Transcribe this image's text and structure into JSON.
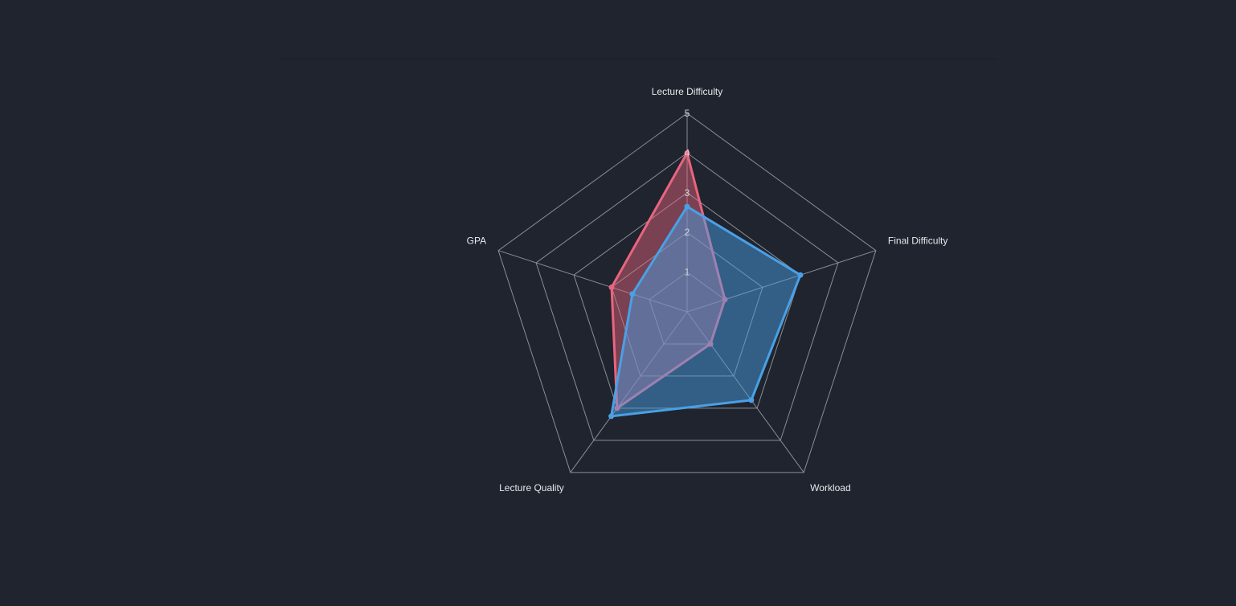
{
  "chart_data": {
    "type": "radar",
    "axes": [
      "Lecture Difficulty",
      "Final Difficulty",
      "Workload",
      "Lecture Quality",
      "GPA"
    ],
    "tick_labels": [
      "1",
      "2",
      "3",
      "4",
      "5"
    ],
    "range": [
      0,
      5
    ],
    "rings": 5,
    "series": [
      {
        "color": "#e8657f",
        "fill": "rgba(232, 101, 127, 0.45)",
        "values": [
          4.0,
          1.0,
          1.0,
          3.0,
          2.0
        ]
      },
      {
        "color": "#4aa0e6",
        "fill": "rgba(74, 160, 230, 0.48)",
        "values": [
          2.65,
          3.0,
          2.75,
          3.25,
          1.45
        ]
      }
    ]
  }
}
